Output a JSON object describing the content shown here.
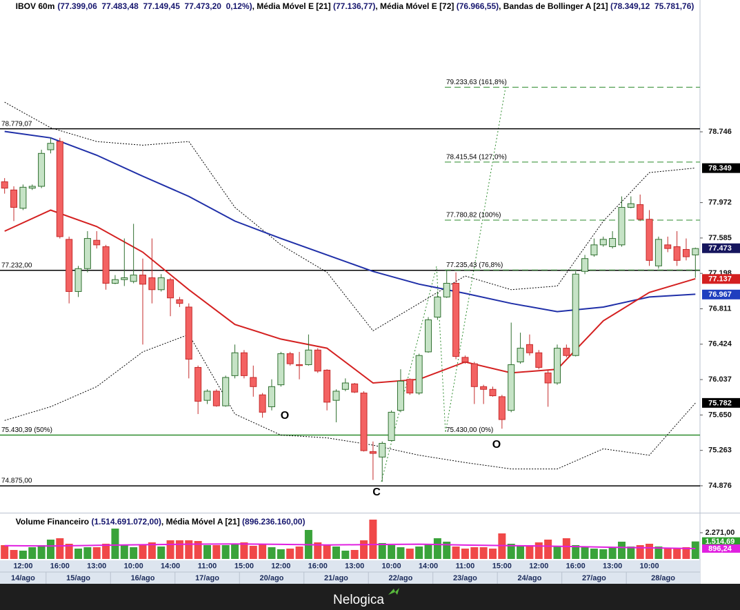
{
  "chart_data": {
    "type": "candlestick",
    "header": [
      "IBOV 60m",
      "(77.399,06  77.483,48  77.149,45  77.473,20  0,12%)",
      ", Média Móvel E [21] ",
      "(77.136,77)",
      ", Média Móvel E [72] ",
      "(76.966,55)",
      ", Bandas de Bollinger A [21] ",
      "(78.349,12  75.781,76)"
    ],
    "categories": [
      null,
      null,
      "12:00",
      null,
      null,
      null,
      "16:00",
      null,
      null,
      null,
      "13:00",
      null,
      null,
      null,
      "10:00",
      null,
      null,
      null,
      "14:00",
      null,
      null,
      null,
      "11:00",
      null,
      null,
      null,
      "15:00",
      null,
      null,
      null,
      "12:00",
      null,
      null,
      null,
      "16:00",
      null,
      null,
      null,
      "13:00",
      null,
      null,
      null,
      "10:00",
      null,
      null,
      null,
      "14:00",
      null,
      null,
      null,
      "11:00",
      null,
      null,
      null,
      "15:00",
      null,
      null,
      null,
      "12:00",
      null,
      null,
      null,
      "16:00",
      null,
      null,
      null,
      "13:00",
      null,
      null,
      null,
      "10:00",
      null,
      null,
      null,
      null,
      null
    ],
    "dates": [
      "14/ago",
      null,
      null,
      null,
      null,
      "15/ago",
      null,
      null,
      null,
      null,
      null,
      null,
      "16/ago",
      null,
      null,
      null,
      null,
      null,
      null,
      "17/ago",
      null,
      null,
      null,
      null,
      null,
      null,
      "20/ago",
      null,
      null,
      null,
      null,
      null,
      null,
      "21/ago",
      null,
      null,
      null,
      null,
      null,
      null,
      "22/ago",
      null,
      null,
      null,
      null,
      null,
      null,
      "23/ago",
      null,
      null,
      null,
      null,
      null,
      null,
      "24/ago",
      null,
      null,
      null,
      null,
      null,
      null,
      "27/ago",
      null,
      null,
      null,
      null,
      null,
      null,
      "28/ago",
      null,
      null,
      null,
      null,
      null,
      null,
      null
    ],
    "open": [
      78.2,
      78.11,
      77.91,
      78.13,
      78.15,
      78.55,
      78.64,
      77.57,
      77.0,
      77.25,
      77.56,
      77.49,
      77.09,
      77.13,
      77.11,
      77.18,
      77.15,
      77.02,
      77.13,
      76.91,
      76.83,
      76.17,
      75.81,
      75.91,
      75.75,
      76.08,
      76.33,
      76.06,
      75.87,
      75.74,
      75.98,
      76.32,
      76.2,
      76.2,
      76.36,
      76.14,
      75.81,
      75.93,
      75.99,
      75.89,
      75.25,
      75.19,
      75.37,
      75.7,
      76.04,
      75.89,
      76.34,
      76.72,
      76.94,
      77.09,
      76.28,
      76.21,
      75.96,
      75.93,
      75.85,
      75.7,
      76.23,
      76.42,
      76.33,
      76.11,
      76.0,
      76.38,
      76.3,
      77.22,
      77.4,
      77.51,
      77.49,
      77.51,
      77.92,
      77.95,
      77.79,
      77.28,
      77.51,
      77.49,
      77.46,
      77.4
    ],
    "high": [
      78.24,
      78.15,
      78.17,
      78.17,
      78.55,
      78.68,
      78.68,
      77.6,
      77.28,
      77.66,
      77.66,
      77.51,
      77.18,
      77.58,
      77.74,
      77.36,
      77.58,
      77.19,
      77.15,
      76.94,
      76.87,
      76.19,
      75.93,
      75.93,
      76.08,
      76.42,
      76.36,
      76.19,
      75.89,
      76.04,
      76.34,
      76.34,
      76.34,
      76.53,
      76.38,
      76.15,
      75.93,
      76.05,
      76.0,
      75.91,
      75.36,
      75.36,
      75.7,
      76.15,
      76.05,
      76.32,
      76.72,
      77.0,
      77.23,
      77.21,
      76.3,
      76.23,
      75.98,
      75.96,
      75.87,
      76.66,
      76.55,
      76.53,
      76.36,
      76.14,
      76.42,
      76.42,
      77.22,
      77.4,
      77.58,
      77.6,
      77.66,
      78.04,
      78.04,
      78.06,
      77.89,
      77.6,
      77.6,
      77.66,
      77.58,
      77.48
    ],
    "low": [
      78.07,
      77.77,
      77.89,
      78.11,
      78.13,
      78.51,
      77.58,
      76.87,
      76.94,
      77.21,
      77.47,
      77.02,
      77.08,
      77.06,
      77.09,
      76.42,
      76.87,
      77.0,
      76.73,
      76.83,
      76.05,
      75.66,
      75.77,
      75.74,
      75.74,
      76.05,
      76.05,
      75.85,
      75.62,
      75.7,
      75.96,
      76.19,
      76.04,
      76.19,
      76.11,
      75.7,
      75.57,
      75.91,
      75.89,
      75.25,
      74.94,
      74.92,
      75.36,
      75.68,
      75.87,
      75.87,
      76.33,
      76.69,
      76.93,
      76.26,
      76.21,
      75.77,
      75.77,
      75.85,
      75.5,
      75.68,
      76.21,
      76.3,
      76.15,
      75.74,
      75.98,
      76.28,
      76.29,
      77.19,
      77.38,
      77.49,
      77.47,
      77.49,
      77.91,
      77.77,
      77.28,
      77.25,
      77.43,
      77.28,
      77.34,
      77.15
    ],
    "close": [
      78.13,
      77.92,
      78.14,
      78.15,
      78.51,
      78.62,
      77.6,
      77.0,
      77.25,
      77.58,
      77.51,
      77.09,
      77.13,
      77.15,
      77.18,
      77.08,
      77.02,
      77.15,
      76.93,
      76.87,
      76.26,
      75.8,
      75.91,
      75.75,
      76.06,
      76.33,
      76.08,
      75.96,
      75.68,
      75.96,
      76.32,
      76.21,
      76.19,
      76.36,
      76.13,
      75.79,
      75.91,
      76.0,
      75.9,
      75.26,
      75.23,
      75.34,
      75.68,
      76.02,
      75.89,
      76.3,
      76.69,
      76.94,
      77.09,
      76.29,
      76.23,
      75.96,
      75.93,
      75.86,
      75.6,
      76.2,
      76.38,
      76.33,
      76.17,
      76.0,
      76.38,
      76.3,
      77.19,
      77.36,
      77.51,
      77.57,
      77.58,
      77.92,
      77.96,
      77.79,
      77.34,
      77.57,
      77.47,
      77.34,
      77.38,
      77.47
    ],
    "up_color": "#c6e3c6",
    "up_edge": "#2f6f2f",
    "down_color": "#f36262",
    "down_edge": "#c42a2a",
    "ylim": [
      74.589,
      80.074
    ],
    "yticks": [
      {
        "value": 78.746,
        "label": "78.746"
      },
      {
        "value": 77.972,
        "label": "77.972"
      },
      {
        "value": 77.585,
        "label": "77.585"
      },
      {
        "value": 77.198,
        "label": "77.198"
      },
      {
        "value": 76.811,
        "label": "76.811"
      },
      {
        "value": 76.424,
        "label": "76.424"
      },
      {
        "value": 76.037,
        "label": "76.037"
      },
      {
        "value": 75.65,
        "label": "75.650"
      },
      {
        "value": 75.263,
        "label": "75.263"
      },
      {
        "value": 74.876,
        "label": "74.876"
      }
    ],
    "series": [
      {
        "name": "Bandas de Bollinger A [21]",
        "color": "#000000",
        "style": "dotted",
        "x": [
          0,
          5,
          10,
          15,
          20,
          25,
          30,
          35,
          40,
          45,
          50,
          55,
          60,
          65,
          70,
          75
        ],
        "values": [
          79.07,
          78.79,
          78.64,
          78.6,
          78.64,
          77.92,
          77.51,
          77.21,
          76.57,
          76.87,
          77.17,
          77.02,
          77.06,
          77.77,
          78.3,
          78.35
        ]
      },
      {
        "name": "Bandas de Bollinger A [21]",
        "color": "#000000",
        "style": "dotted",
        "x": [
          0,
          5,
          10,
          15,
          20,
          25,
          30,
          35,
          40,
          45,
          50,
          55,
          60,
          65,
          70,
          75
        ],
        "values": [
          75.59,
          75.74,
          75.96,
          76.34,
          76.53,
          75.66,
          75.43,
          75.4,
          75.32,
          75.21,
          75.13,
          75.06,
          75.06,
          75.28,
          75.21,
          75.78
        ]
      },
      {
        "name": "Média Móvel E [72]",
        "color": "#1f2fa8",
        "style": "solid",
        "x": [
          0,
          5,
          10,
          15,
          20,
          25,
          30,
          35,
          40,
          45,
          50,
          55,
          60,
          65,
          70,
          75
        ],
        "values": [
          78.75,
          78.68,
          78.49,
          78.26,
          78.04,
          77.77,
          77.58,
          77.4,
          77.22,
          77.08,
          76.98,
          76.87,
          76.78,
          76.83,
          76.94,
          76.97
        ]
      },
      {
        "name": "Média Móvel E [21]",
        "color": "#d42020",
        "style": "solid",
        "x": [
          0,
          5,
          10,
          15,
          20,
          25,
          30,
          35,
          40,
          45,
          50,
          55,
          60,
          65,
          70,
          75
        ],
        "values": [
          77.66,
          77.89,
          77.71,
          77.43,
          77.02,
          76.64,
          76.48,
          76.38,
          76.0,
          76.04,
          76.23,
          76.11,
          76.15,
          76.68,
          76.99,
          77.14
        ]
      }
    ],
    "levels": [
      {
        "value": 78.77907,
        "label": "78.779,07",
        "color": "#000000"
      },
      {
        "value": 77.232,
        "label": "77.232,00",
        "color": "#000000"
      },
      {
        "value": 75.43039,
        "label": "75.430,39 (50%)",
        "color": "#2a8a2a"
      },
      {
        "value": 74.875,
        "label": "74.875,00",
        "color": "#000000"
      }
    ],
    "fibonacci": {
      "color": "#2a8a2a",
      "levels": [
        {
          "value": 79.23363,
          "label": "79.233,63 (161,8%)"
        },
        {
          "value": 78.41554,
          "label": "78.415,54 (127,0%)"
        },
        {
          "value": 77.78082,
          "label": "77.780,82 (100%)"
        },
        {
          "value": 77.23543,
          "label": "77.235,43 (76,8%)"
        },
        {
          "value": 75.43,
          "label": "75.430,00 (0%)"
        }
      ]
    },
    "price_badges": [
      {
        "value": 78.349,
        "label": "78.349",
        "color": "#000000"
      },
      {
        "value": 77.473,
        "label": "77.473",
        "color": "#16165e"
      },
      {
        "value": 77.137,
        "label": "77.137",
        "color": "#d42020"
      },
      {
        "value": 76.967,
        "label": "76.967",
        "color": "#1f3fbf"
      },
      {
        "value": 75.782,
        "label": "75.782",
        "color": "#000000"
      }
    ],
    "volume": {
      "type": "bar",
      "header": [
        "Volume Financeiro ",
        "(1.514.691.072,00)",
        ", Média Móvel A [21] ",
        "(896.236.160,00)"
      ],
      "values": [
        1195,
        777,
        717,
        1016,
        1195,
        1673,
        1793,
        1315,
        896,
        1016,
        1016,
        1315,
        2629,
        1195,
        1016,
        1195,
        1434,
        1076,
        1614,
        1614,
        1614,
        1554,
        1195,
        1195,
        1195,
        1315,
        1434,
        1135,
        1315,
        1016,
        837,
        896,
        1076,
        2510,
        1434,
        1255,
        1076,
        717,
        777,
        1614,
        3406,
        1374,
        1195,
        1016,
        896,
        1076,
        1315,
        1793,
        1494,
        1076,
        896,
        1016,
        1016,
        896,
        2211,
        1315,
        1195,
        1195,
        1434,
        1673,
        1135,
        1793,
        1195,
        1076,
        896,
        837,
        1016,
        1494,
        1076,
        1195,
        1315,
        1076,
        896,
        896,
        1016,
        1514.69
      ],
      "up_color": "#3aa33a",
      "down_color": "#f04848",
      "ylim": [
        0,
        3884
      ],
      "yticks": [
        {
          "value": 2271,
          "label": "2.271,00"
        }
      ],
      "series": [
        {
          "name": "Média Móvel A [21]",
          "color": "#e020e0",
          "x": [
            0,
            5,
            10,
            15,
            20,
            25,
            30,
            35,
            40,
            45,
            50,
            55,
            60,
            65,
            70,
            75
          ],
          "values": [
            1150,
            1120,
            1180,
            1230,
            1280,
            1300,
            1260,
            1210,
            1250,
            1280,
            1200,
            1150,
            1100,
            1020,
            960,
            896.24
          ]
        }
      ],
      "badges": [
        {
          "value": 1514.69,
          "label": "1.514,69",
          "color": "#2e9e2e"
        },
        {
          "value": 896.24,
          "label": "896,24",
          "color": "#e020e0"
        }
      ]
    }
  },
  "annotations": [
    "O",
    "C",
    "O"
  ],
  "footer": {
    "brand": "Nelogica"
  }
}
